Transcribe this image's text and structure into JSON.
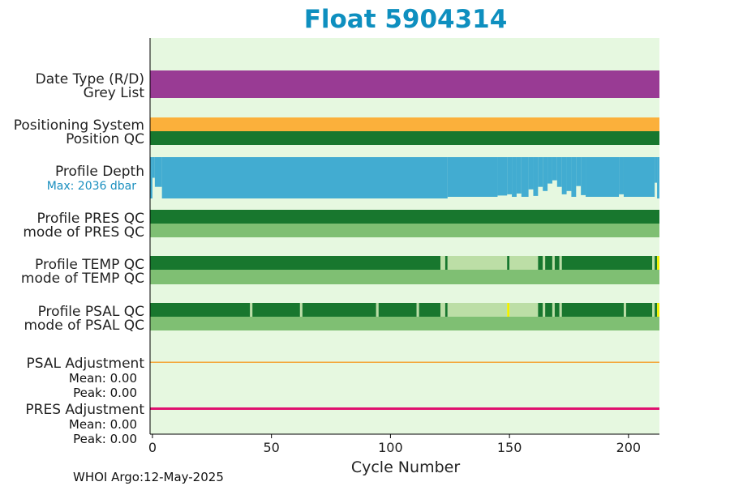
{
  "chart_data": {
    "type": "bar",
    "title": "Float 5904314",
    "xlabel": "Cycle Number",
    "xlim": [
      -1,
      213
    ],
    "xticks": [
      0,
      50,
      100,
      150,
      200
    ],
    "footer": "WHOI Argo:12-May-2025",
    "colors": {
      "background": "#e6f8e0",
      "date_type": "#993b94",
      "positioning": "#fbb03b",
      "qc_good": "#18772e",
      "qc_mode": "#7fbf73",
      "qc_probable": "#bcdea6",
      "qc_flag": "#f0f000",
      "profile_depth": "#42acd1",
      "psal_adjustment": "#f3a63a",
      "pres_adjustment": "#e0116f",
      "title": "#0e8fbf"
    },
    "rows": {
      "date_type": {
        "label1": "Date Type (R/D)",
        "label2": "Grey List"
      },
      "position": {
        "label1": "Positioning System",
        "label2": "Position QC"
      },
      "depth": {
        "label": "Profile Depth",
        "max_label": "Max: 2036 dbar",
        "max_dbar": 2036
      },
      "pres": {
        "label1": "Profile PRES QC",
        "label2": "mode of PRES QC"
      },
      "temp": {
        "label1": "Profile TEMP QC",
        "label2": "mode of TEMP QC"
      },
      "psal": {
        "label1": "Profile PSAL QC",
        "label2": "mode of PSAL QC"
      },
      "psal_adj": {
        "label": "PSAL Adjustment",
        "mean": "Mean: 0.00",
        "peak": "Peak: 0.00"
      },
      "pres_adj": {
        "label": "PRES Adjustment",
        "mean": "Mean: 0.00",
        "peak": "Peak: 0.00"
      }
    },
    "segments": {
      "temp": [
        {
          "from": -1,
          "to": 121,
          "q": "good"
        },
        {
          "from": 121,
          "to": 123,
          "q": "probable"
        },
        {
          "from": 123,
          "to": 124,
          "q": "good"
        },
        {
          "from": 124,
          "to": 149,
          "q": "probable"
        },
        {
          "from": 149,
          "to": 150,
          "q": "good"
        },
        {
          "from": 150,
          "to": 162,
          "q": "probable"
        },
        {
          "from": 162,
          "to": 164,
          "q": "good"
        },
        {
          "from": 164,
          "to": 165,
          "q": "probable"
        },
        {
          "from": 165,
          "to": 168,
          "q": "good"
        },
        {
          "from": 168,
          "to": 169,
          "q": "probable"
        },
        {
          "from": 169,
          "to": 171,
          "q": "good"
        },
        {
          "from": 171,
          "to": 172,
          "q": "probable"
        },
        {
          "from": 172,
          "to": 210,
          "q": "good"
        },
        {
          "from": 210,
          "to": 211,
          "q": "probable"
        },
        {
          "from": 211,
          "to": 212,
          "q": "good"
        },
        {
          "from": 212,
          "to": 213,
          "q": "flag"
        }
      ],
      "psal": [
        {
          "from": -1,
          "to": 41,
          "q": "good"
        },
        {
          "from": 41,
          "to": 42,
          "q": "probable"
        },
        {
          "from": 42,
          "to": 62,
          "q": "good"
        },
        {
          "from": 62,
          "to": 63,
          "q": "probable"
        },
        {
          "from": 63,
          "to": 94,
          "q": "good"
        },
        {
          "from": 94,
          "to": 95,
          "q": "probable"
        },
        {
          "from": 95,
          "to": 111,
          "q": "good"
        },
        {
          "from": 111,
          "to": 112,
          "q": "probable"
        },
        {
          "from": 112,
          "to": 121,
          "q": "good"
        },
        {
          "from": 121,
          "to": 123,
          "q": "probable"
        },
        {
          "from": 123,
          "to": 124,
          "q": "good"
        },
        {
          "from": 124,
          "to": 149,
          "q": "probable"
        },
        {
          "from": 149,
          "to": 150,
          "q": "flag"
        },
        {
          "from": 150,
          "to": 162,
          "q": "probable"
        },
        {
          "from": 162,
          "to": 164,
          "q": "good"
        },
        {
          "from": 164,
          "to": 165,
          "q": "probable"
        },
        {
          "from": 165,
          "to": 168,
          "q": "good"
        },
        {
          "from": 168,
          "to": 169,
          "q": "probable"
        },
        {
          "from": 169,
          "to": 171,
          "q": "good"
        },
        {
          "from": 171,
          "to": 172,
          "q": "probable"
        },
        {
          "from": 172,
          "to": 198,
          "q": "good"
        },
        {
          "from": 198,
          "to": 199,
          "q": "probable"
        },
        {
          "from": 199,
          "to": 210,
          "q": "good"
        },
        {
          "from": 210,
          "to": 211,
          "q": "probable"
        },
        {
          "from": 211,
          "to": 212,
          "q": "good"
        },
        {
          "from": 212,
          "to": 213,
          "q": "flag"
        }
      ]
    },
    "depth_fraction": [
      {
        "from": -1,
        "to": 0,
        "f": 1.0
      },
      {
        "from": 0,
        "to": 1,
        "f": 0.5
      },
      {
        "from": 1,
        "to": 4,
        "f": 0.72
      },
      {
        "from": 4,
        "to": 124,
        "f": 1.0
      },
      {
        "from": 124,
        "to": 145,
        "f": 0.96
      },
      {
        "from": 145,
        "to": 149,
        "f": 0.93
      },
      {
        "from": 149,
        "to": 151,
        "f": 0.9
      },
      {
        "from": 151,
        "to": 153,
        "f": 0.96
      },
      {
        "from": 153,
        "to": 155,
        "f": 0.88
      },
      {
        "from": 155,
        "to": 158,
        "f": 0.96
      },
      {
        "from": 158,
        "to": 160,
        "f": 0.78
      },
      {
        "from": 160,
        "to": 162,
        "f": 0.94
      },
      {
        "from": 162,
        "to": 164,
        "f": 0.72
      },
      {
        "from": 164,
        "to": 166,
        "f": 0.82
      },
      {
        "from": 166,
        "to": 168,
        "f": 0.64
      },
      {
        "from": 168,
        "to": 170,
        "f": 0.56
      },
      {
        "from": 170,
        "to": 172,
        "f": 0.72
      },
      {
        "from": 172,
        "to": 174,
        "f": 0.9
      },
      {
        "from": 174,
        "to": 176,
        "f": 0.82
      },
      {
        "from": 176,
        "to": 178,
        "f": 0.96
      },
      {
        "from": 178,
        "to": 180,
        "f": 0.7
      },
      {
        "from": 180,
        "to": 182,
        "f": 0.92
      },
      {
        "from": 182,
        "to": 196,
        "f": 0.96
      },
      {
        "from": 196,
        "to": 198,
        "f": 0.9
      },
      {
        "from": 198,
        "to": 211,
        "f": 0.96
      },
      {
        "from": 211,
        "to": 212,
        "f": 0.62
      },
      {
        "from": 212,
        "to": 213,
        "f": 1.0
      }
    ]
  }
}
